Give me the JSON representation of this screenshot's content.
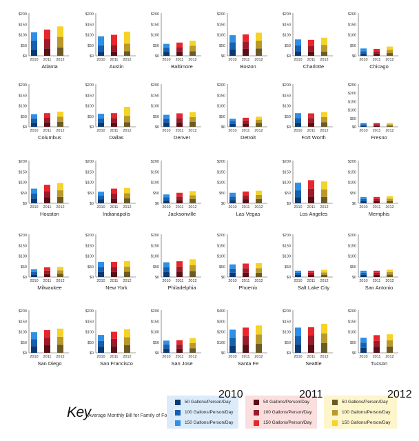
{
  "chart_data": {
    "type": "bar",
    "layout": "small-multiples, stacked",
    "categories": [
      "2010",
      "2011",
      "2012"
    ],
    "levels": [
      "50 Gallons/Person/Day",
      "100 Gallons/Person/Day",
      "150 Gallons/Person/Day"
    ],
    "colors": {
      "2010": [
        "#0a3a73",
        "#1660b0",
        "#2f8fe6"
      ],
      "2011": [
        "#5a0f16",
        "#9c1a2a",
        "#e8272d"
      ],
      "2012": [
        "#6b5a25",
        "#b9992a",
        "#f5d327"
      ]
    },
    "cities": [
      {
        "name": "Atlanta",
        "yticks": [
          "$200",
          "$150",
          "$100",
          "$50",
          "$0"
        ],
        "ymax": 200,
        "bars": [
          [
            30,
            72,
            112
          ],
          [
            35,
            80,
            125
          ],
          [
            40,
            90,
            140
          ]
        ]
      },
      {
        "name": "Austin",
        "yticks": [
          "$200",
          "$150",
          "$100",
          "$50",
          "$0"
        ],
        "ymax": 200,
        "bars": [
          [
            18,
            50,
            93
          ],
          [
            20,
            52,
            100
          ],
          [
            22,
            58,
            115
          ]
        ]
      },
      {
        "name": "Baltimore",
        "yticks": [
          "$200",
          "$150",
          "$100",
          "$50",
          "$0"
        ],
        "ymax": 200,
        "bars": [
          [
            18,
            38,
            57
          ],
          [
            20,
            42,
            63
          ],
          [
            22,
            48,
            72
          ]
        ]
      },
      {
        "name": "Boston",
        "yticks": [
          "$200",
          "$150",
          "$100",
          "$50",
          "$0"
        ],
        "ymax": 200,
        "bars": [
          [
            32,
            65,
            98
          ],
          [
            33,
            68,
            102
          ],
          [
            35,
            72,
            110
          ]
        ]
      },
      {
        "name": "Charlotte",
        "yticks": [
          "$200",
          "$150",
          "$100",
          "$50",
          "$0"
        ],
        "ymax": 200,
        "bars": [
          [
            22,
            50,
            78
          ],
          [
            20,
            48,
            76
          ],
          [
            20,
            52,
            86
          ]
        ]
      },
      {
        "name": "Chicago",
        "yticks": [
          "$200",
          "$150",
          "$100",
          "$50",
          "$0"
        ],
        "ymax": 200,
        "bars": [
          [
            10,
            22,
            35
          ],
          [
            10,
            22,
            33
          ],
          [
            13,
            28,
            44
          ]
        ]
      },
      {
        "name": "Columbus",
        "yticks": [
          "$200",
          "$150",
          "$100",
          "$50",
          "$0"
        ],
        "ymax": 200,
        "bars": [
          [
            20,
            40,
            60
          ],
          [
            22,
            44,
            65
          ],
          [
            24,
            48,
            72
          ]
        ]
      },
      {
        "name": "Dallas",
        "yticks": [
          "$200",
          "$150",
          "$100",
          "$50",
          "$0"
        ],
        "ymax": 200,
        "bars": [
          [
            20,
            40,
            62
          ],
          [
            20,
            42,
            65
          ],
          [
            22,
            52,
            95
          ]
        ]
      },
      {
        "name": "Denver",
        "yticks": [
          "$200",
          "$150",
          "$100",
          "$50",
          "$0"
        ],
        "ymax": 200,
        "bars": [
          [
            20,
            38,
            57
          ],
          [
            22,
            42,
            64
          ],
          [
            24,
            46,
            70
          ]
        ]
      },
      {
        "name": "Detroit",
        "yticks": [
          "$200",
          "$150",
          "$100",
          "$50",
          "$0"
        ],
        "ymax": 200,
        "bars": [
          [
            14,
            26,
            38
          ],
          [
            16,
            30,
            43
          ],
          [
            18,
            34,
            48
          ]
        ]
      },
      {
        "name": "Fort Worth",
        "yticks": [
          "$200",
          "$150",
          "$100",
          "$50",
          "$0"
        ],
        "ymax": 200,
        "bars": [
          [
            20,
            42,
            65
          ],
          [
            20,
            42,
            64
          ],
          [
            22,
            46,
            70
          ]
        ]
      },
      {
        "name": "Fresno",
        "yticks": [
          "$250",
          "$200",
          "$150",
          "$100",
          "$50",
          "$0"
        ],
        "ymax": 250,
        "bars": [
          [
            7,
            14,
            22
          ],
          [
            7,
            14,
            22
          ],
          [
            7,
            15,
            23
          ]
        ]
      },
      {
        "name": "Houston",
        "yticks": [
          "$200",
          "$150",
          "$100",
          "$50",
          "$0"
        ],
        "ymax": 200,
        "bars": [
          [
            22,
            46,
            70
          ],
          [
            28,
            58,
            88
          ],
          [
            30,
            62,
            96
          ]
        ]
      },
      {
        "name": "Indianapolis",
        "yticks": [
          "$200",
          "$150",
          "$100",
          "$50",
          "$0"
        ],
        "ymax": 200,
        "bars": [
          [
            18,
            36,
            55
          ],
          [
            22,
            46,
            70
          ],
          [
            24,
            48,
            73
          ]
        ]
      },
      {
        "name": "Jacksonville",
        "yticks": [
          "$200",
          "$150",
          "$100",
          "$50",
          "$0"
        ],
        "ymax": 200,
        "bars": [
          [
            14,
            28,
            42
          ],
          [
            16,
            32,
            50
          ],
          [
            20,
            38,
            58
          ]
        ]
      },
      {
        "name": "Las Vegas",
        "yticks": [
          "$200",
          "$150",
          "$100",
          "$50",
          "$0"
        ],
        "ymax": 200,
        "bars": [
          [
            16,
            32,
            50
          ],
          [
            18,
            36,
            56
          ],
          [
            20,
            40,
            60
          ]
        ]
      },
      {
        "name": "Los Angeles",
        "yticks": [
          "$200",
          "$150",
          "$100",
          "$50",
          "$0"
        ],
        "ymax": 200,
        "bars": [
          [
            28,
            62,
            98
          ],
          [
            32,
            70,
            110
          ],
          [
            30,
            66,
            104
          ]
        ]
      },
      {
        "name": "Memphis",
        "yticks": [
          "$200",
          "$150",
          "$100",
          "$50",
          "$0"
        ],
        "ymax": 200,
        "bars": [
          [
            10,
            20,
            30
          ],
          [
            10,
            20,
            30
          ],
          [
            11,
            22,
            34
          ]
        ]
      },
      {
        "name": "Milwaukee",
        "yticks": [
          "$200",
          "$150",
          "$100",
          "$50",
          "$0"
        ],
        "ymax": 200,
        "bars": [
          [
            12,
            24,
            37
          ],
          [
            14,
            30,
            46
          ],
          [
            16,
            32,
            48
          ]
        ]
      },
      {
        "name": "New York",
        "yticks": [
          "$200",
          "$150",
          "$100",
          "$50",
          "$0"
        ],
        "ymax": 200,
        "bars": [
          [
            24,
            48,
            72
          ],
          [
            24,
            48,
            72
          ],
          [
            25,
            50,
            76
          ]
        ]
      },
      {
        "name": "Philadelphia",
        "yticks": [
          "$200",
          "$150",
          "$100",
          "$50",
          "$0"
        ],
        "ymax": 200,
        "bars": [
          [
            24,
            46,
            70
          ],
          [
            25,
            50,
            75
          ],
          [
            28,
            56,
            84
          ]
        ]
      },
      {
        "name": "Phoenix",
        "yticks": [
          "$200",
          "$150",
          "$100",
          "$50",
          "$0"
        ],
        "ymax": 200,
        "bars": [
          [
            20,
            40,
            60
          ],
          [
            20,
            42,
            64
          ],
          [
            20,
            42,
            66
          ]
        ]
      },
      {
        "name": "Salt Lake City",
        "yticks": [
          "$200",
          "$150",
          "$100",
          "$50",
          "$0"
        ],
        "ymax": 200,
        "bars": [
          [
            10,
            20,
            30
          ],
          [
            10,
            20,
            30
          ],
          [
            11,
            22,
            34
          ]
        ]
      },
      {
        "name": "San Antonio",
        "yticks": [
          "$200",
          "$150",
          "$100",
          "$50",
          "$0"
        ],
        "ymax": 200,
        "bars": [
          [
            10,
            20,
            30
          ],
          [
            10,
            20,
            30
          ],
          [
            12,
            23,
            35
          ]
        ]
      },
      {
        "name": "San Diego",
        "yticks": [
          "$200",
          "$150",
          "$100",
          "$50",
          "$0"
        ],
        "ymax": 200,
        "bars": [
          [
            32,
            64,
            98
          ],
          [
            36,
            72,
            108
          ],
          [
            38,
            76,
            115
          ]
        ]
      },
      {
        "name": "San Francisco",
        "yticks": [
          "$200",
          "$150",
          "$100",
          "$50",
          "$0"
        ],
        "ymax": 200,
        "bars": [
          [
            28,
            56,
            85
          ],
          [
            32,
            66,
            100
          ],
          [
            36,
            74,
            112
          ]
        ]
      },
      {
        "name": "San Jose",
        "yticks": [
          "$200",
          "$150",
          "$100",
          "$50",
          "$0"
        ],
        "ymax": 200,
        "bars": [
          [
            20,
            40,
            58
          ],
          [
            20,
            40,
            60
          ],
          [
            22,
            46,
            70
          ]
        ]
      },
      {
        "name": "Santa Fe",
        "yticks": [
          "$400",
          "$300",
          "$200",
          "$100",
          "$0"
        ],
        "ymax": 400,
        "bars": [
          [
            70,
            145,
            220
          ],
          [
            78,
            160,
            240
          ],
          [
            85,
            175,
            260
          ]
        ]
      },
      {
        "name": "Seattle",
        "yticks": [
          "$200",
          "$150",
          "$100",
          "$50",
          "$0"
        ],
        "ymax": 200,
        "bars": [
          [
            40,
            80,
            120
          ],
          [
            40,
            82,
            122
          ],
          [
            46,
            92,
            138
          ]
        ]
      },
      {
        "name": "Tucson",
        "yticks": [
          "$200",
          "$150",
          "$100",
          "$50",
          "$0"
        ],
        "ymax": 200,
        "bars": [
          [
            24,
            48,
            72
          ],
          [
            28,
            56,
            84
          ],
          [
            30,
            60,
            88
          ]
        ]
      }
    ]
  },
  "key": {
    "title": "Key",
    "subtitle": "Average Monthly Bill for Family of Four Using...",
    "groups": [
      {
        "year": "2010",
        "bg": "#dcebfa",
        "items": [
          "50 Gallons/Person/Day",
          "100 Gallons/Person/Day",
          "150 Gallons/Person/Day"
        ]
      },
      {
        "year": "2011",
        "bg": "#fbdede",
        "items": [
          "50 Gallons/Person/Day",
          "100 Gallons/Person/Day",
          "150 Gallons/Person/Day"
        ]
      },
      {
        "year": "2012",
        "bg": "#fdf5cc",
        "items": [
          "50 Gallons/Person/Day",
          "100 Gallons/Person/Day",
          "150 Gallons/Person/Day"
        ]
      }
    ]
  }
}
